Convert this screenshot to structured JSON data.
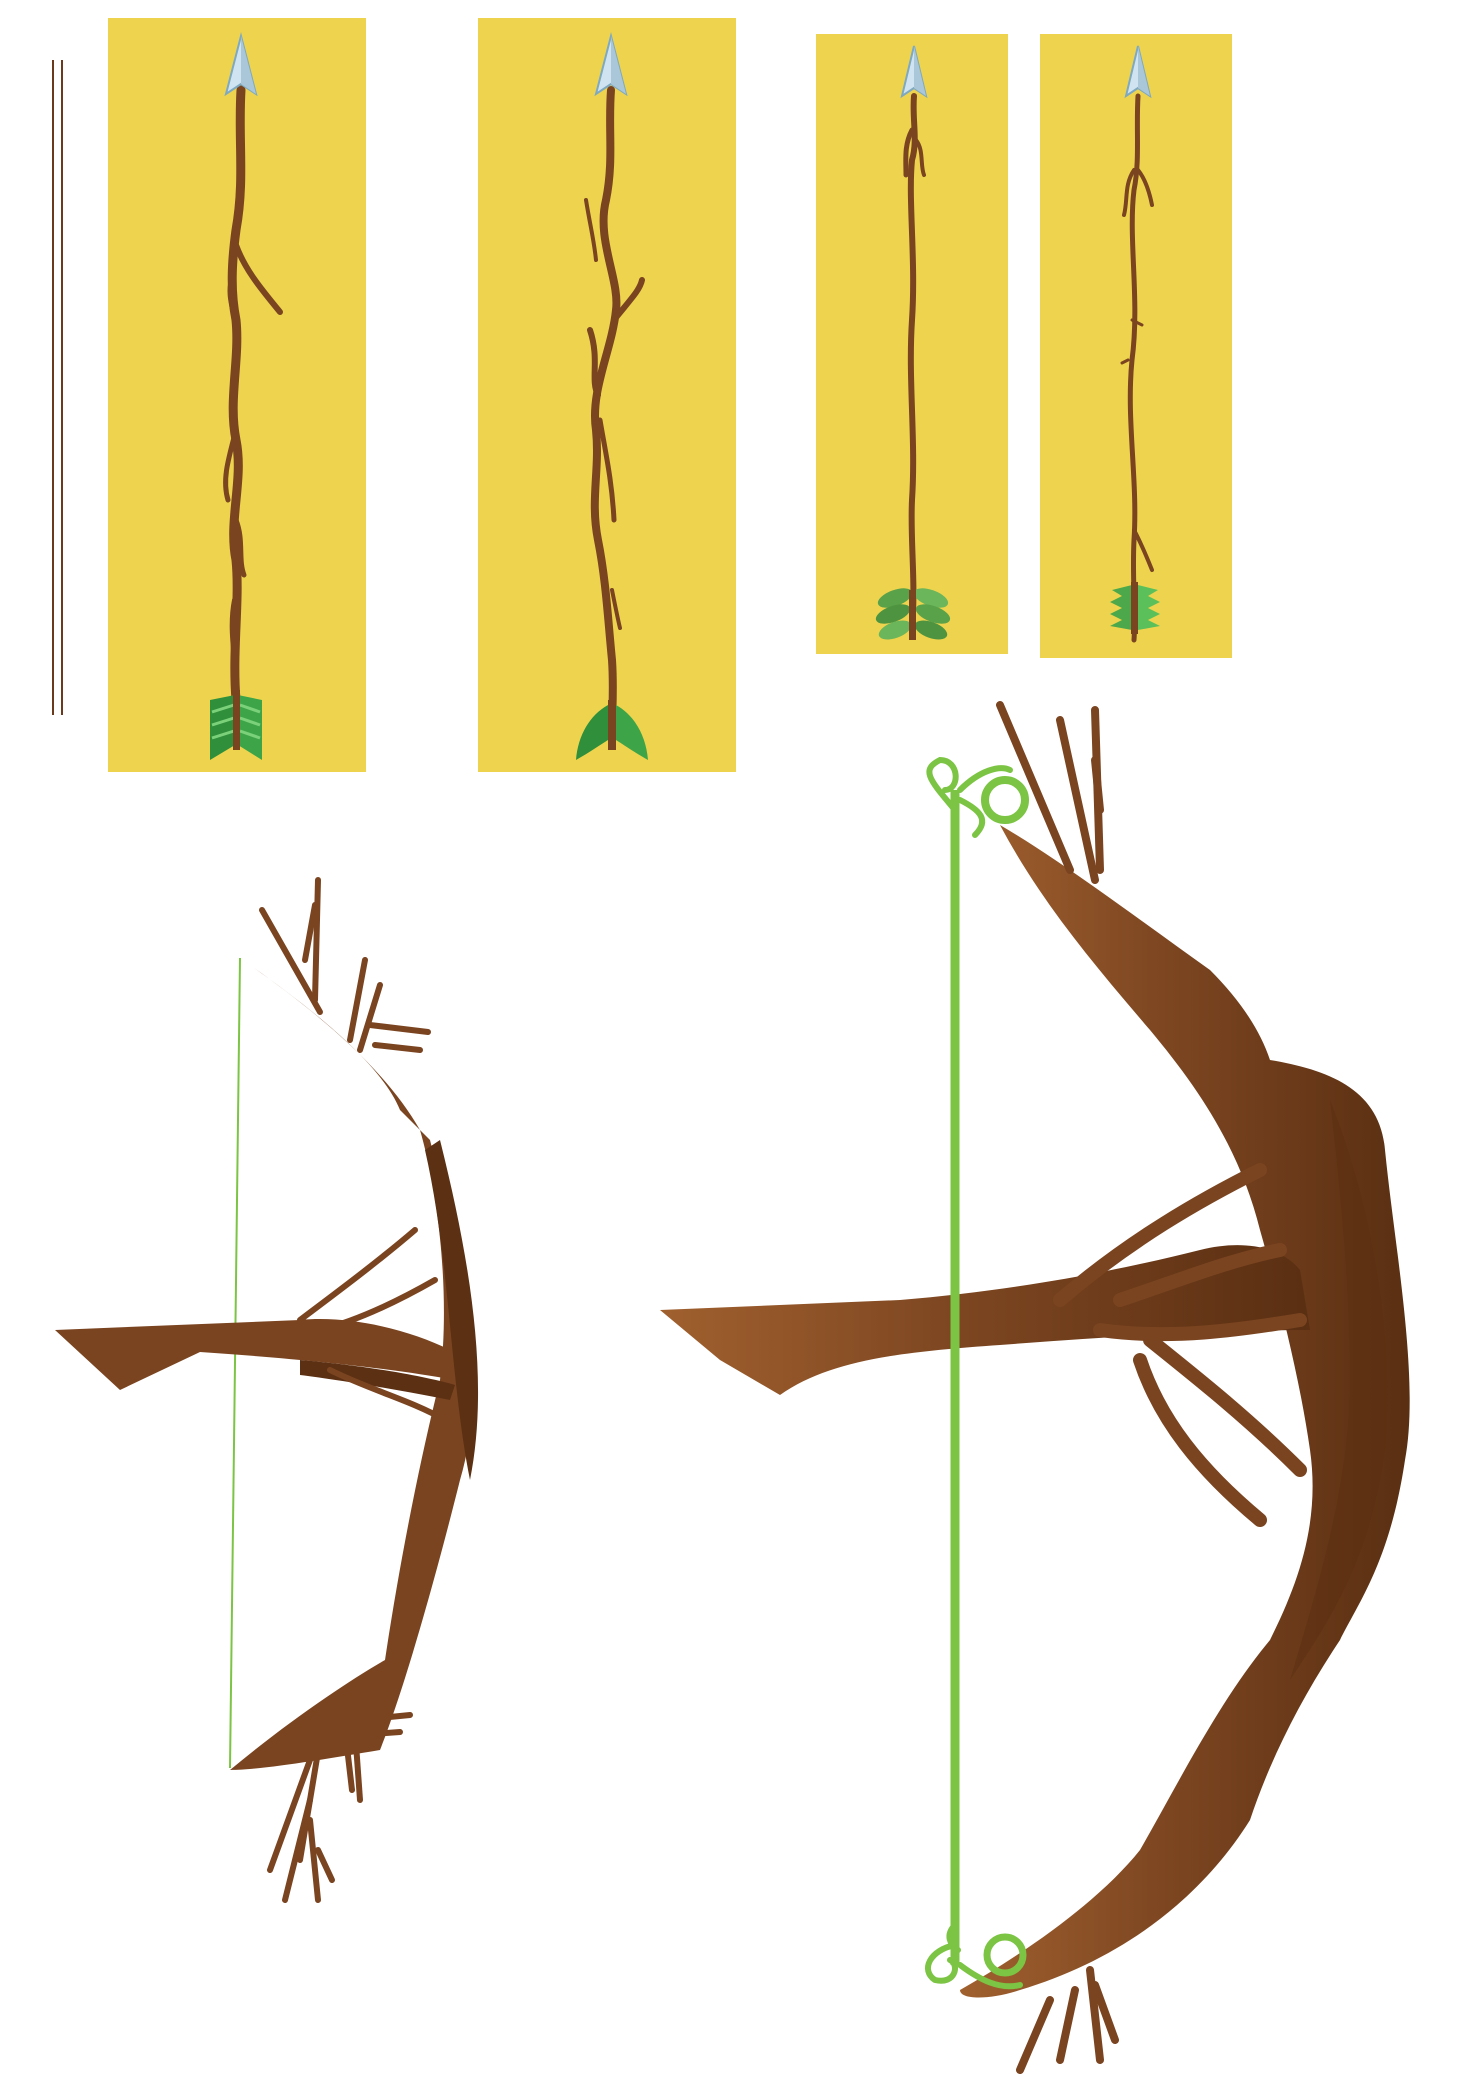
{
  "colors": {
    "background": "#ffffff",
    "panel": "#eed44e",
    "wood": "#7a4420",
    "wood_shade": "#5c3013",
    "wood_light": "#9a5a2c",
    "arrowhead": "#cfe4f0",
    "arrowhead_edge": "#7fa9c0",
    "fletch_dark": "#2f8f3a",
    "fletch_light": "#5cc05a",
    "bowstring": "#7cc444",
    "vine": "#7cc444"
  },
  "items": [
    {
      "name": "arrow-sketch-lines",
      "icon": "twin-lines"
    },
    {
      "name": "branch-arrow-1",
      "icon": "arrow-chevron-fletching"
    },
    {
      "name": "branch-arrow-2",
      "icon": "arrow-leaf-fletching"
    },
    {
      "name": "branch-arrow-3",
      "icon": "arrow-leaf-cluster"
    },
    {
      "name": "branch-arrow-4",
      "icon": "arrow-serrated-leaves"
    },
    {
      "name": "branch-bow-flat",
      "icon": "bow-thin-string"
    },
    {
      "name": "branch-bow-shaded",
      "icon": "bow-vine-string"
    }
  ]
}
